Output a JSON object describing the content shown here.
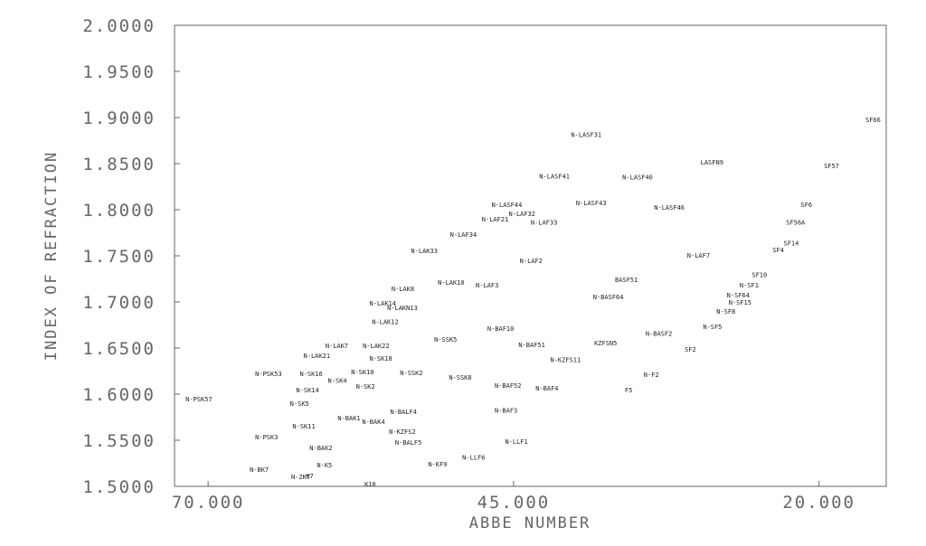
{
  "chart_data": {
    "type": "scatter",
    "x_label": "ABBE NUMBER",
    "y_label": "INDEX OF REFRACTION",
    "xlim": [
      72.75,
      14.5
    ],
    "ylim": [
      1.5,
      2.0
    ],
    "xticks": [
      {
        "value": 70,
        "label": "70.000"
      },
      {
        "value": 45,
        "label": "45.000"
      },
      {
        "value": 20,
        "label": "20.000"
      }
    ],
    "yticks": [
      {
        "value": 1.5,
        "label": "1.5000"
      },
      {
        "value": 1.55,
        "label": "1.5500"
      },
      {
        "value": 1.6,
        "label": "1.6000"
      },
      {
        "value": 1.65,
        "label": "1.6500"
      },
      {
        "value": 1.7,
        "label": "1.7000"
      },
      {
        "value": 1.75,
        "label": "1.7500"
      },
      {
        "value": 1.8,
        "label": "1.8000"
      },
      {
        "value": 1.85,
        "label": "1.8500"
      },
      {
        "value": 1.9,
        "label": "1.9000"
      },
      {
        "value": 1.95,
        "label": "1.9500"
      },
      {
        "value": 2.0,
        "label": "2.0000"
      }
    ],
    "color": "#222222",
    "labels": [
      "N-PSK57",
      "N-BK7",
      "N-ZK7",
      "K7",
      "N-PSK53",
      "N-PSK3",
      "N-SK11",
      "N-SK5",
      "N-SK14",
      "N-SK16",
      "N-LAK21",
      "N-LAK7",
      "N-SK4",
      "N-SK10",
      "N-SK2",
      "N-LAK22",
      "N-SK18",
      "N-BAK2",
      "N-BAK1",
      "N-BAK4",
      "N-K5",
      "N-SSK2",
      "N-BALF4",
      "N-KZFS2",
      "N-BALF5",
      "K10",
      "N-LAK12",
      "N-LAKN13",
      "N-LAK14",
      "N-LAK8",
      "N-LAK33",
      "N-LAK10",
      "N-LAF3",
      "N-SSK5",
      "N-SSK8",
      "N-BAF10",
      "N-BAF51",
      "N-BAF52",
      "N-BAF3",
      "N-BAF4",
      "N-KZFS11",
      "N-KF9",
      "N-LLF6",
      "N-LLF1",
      "N-LAF34",
      "N-LAF21",
      "N-LAF32",
      "N-LASF44",
      "N-LAF33",
      "N-LAF2",
      "N-LASF41",
      "N-LASF43",
      "N-LASF31",
      "N-LASF40",
      "N-LASF46",
      "LASFN9",
      "N-BASF64",
      "BASF51",
      "KZFSN5",
      "N-BASF2",
      "SF2",
      "N-F2",
      "F5",
      "N-LAF7",
      "SF66",
      "SF57",
      "SF6",
      "SF56A",
      "SF14",
      "SF4",
      "SF10",
      "N-SF1",
      "N-SF64",
      "N-SF15",
      "N-SF8",
      "N-SF5"
    ],
    "x": [
      71.85,
      66.6,
      63.2,
      62.0,
      66.15,
      66.15,
      63.1,
      63.3,
      62.8,
      62.5,
      62.2,
      60.4,
      60.2,
      58.3,
      57.9,
      57.35,
      56.8,
      61.7,
      59.4,
      57.4,
      61.1,
      54.3,
      55.1,
      55.2,
      54.7,
      57.2,
      56.6,
      55.35,
      56.8,
      55.0,
      53.4,
      51.2,
      48.1,
      51.5,
      50.3,
      47.15,
      44.6,
      46.55,
      46.55,
      43.2,
      42.0,
      52.0,
      49.2,
      45.7,
      50.2,
      47.6,
      45.4,
      46.8,
      43.6,
      44.5,
      42.9,
      39.9,
      40.3,
      36.1,
      33.5,
      29.7,
      38.5,
      36.7,
      38.4,
      34.2,
      31.0,
      34.35,
      35.9,
      30.8,
      16.2,
      19.6,
      21.5,
      22.7,
      22.9,
      23.8,
      25.5,
      26.5,
      27.55,
      27.4,
      28.4,
      29.5
    ],
    "values": [
      1.594,
      1.5176,
      1.5098,
      1.511,
      1.6216,
      1.553,
      1.5647,
      1.589,
      1.604,
      1.6216,
      1.641,
      1.652,
      1.614,
      1.6235,
      1.608,
      1.652,
      1.638,
      1.541,
      1.5735,
      1.5696,
      1.5225,
      1.6225,
      1.5804,
      1.5588,
      1.547,
      1.502,
      1.678,
      1.693,
      1.698,
      1.7137,
      1.755,
      1.7206,
      1.7176,
      1.6588,
      1.6176,
      1.6706,
      1.653,
      1.6088,
      1.582,
      1.606,
      1.637,
      1.5235,
      1.531,
      1.548,
      1.7725,
      1.789,
      1.795,
      1.8049,
      1.786,
      1.744,
      1.836,
      1.807,
      1.881,
      1.835,
      1.802,
      1.851,
      1.705,
      1.7235,
      1.655,
      1.665,
      1.648,
      1.6206,
      1.604,
      1.75,
      1.897,
      1.847,
      1.805,
      1.786,
      1.763,
      1.756,
      1.729,
      1.7176,
      1.707,
      1.699,
      1.689,
      1.6725
    ]
  }
}
